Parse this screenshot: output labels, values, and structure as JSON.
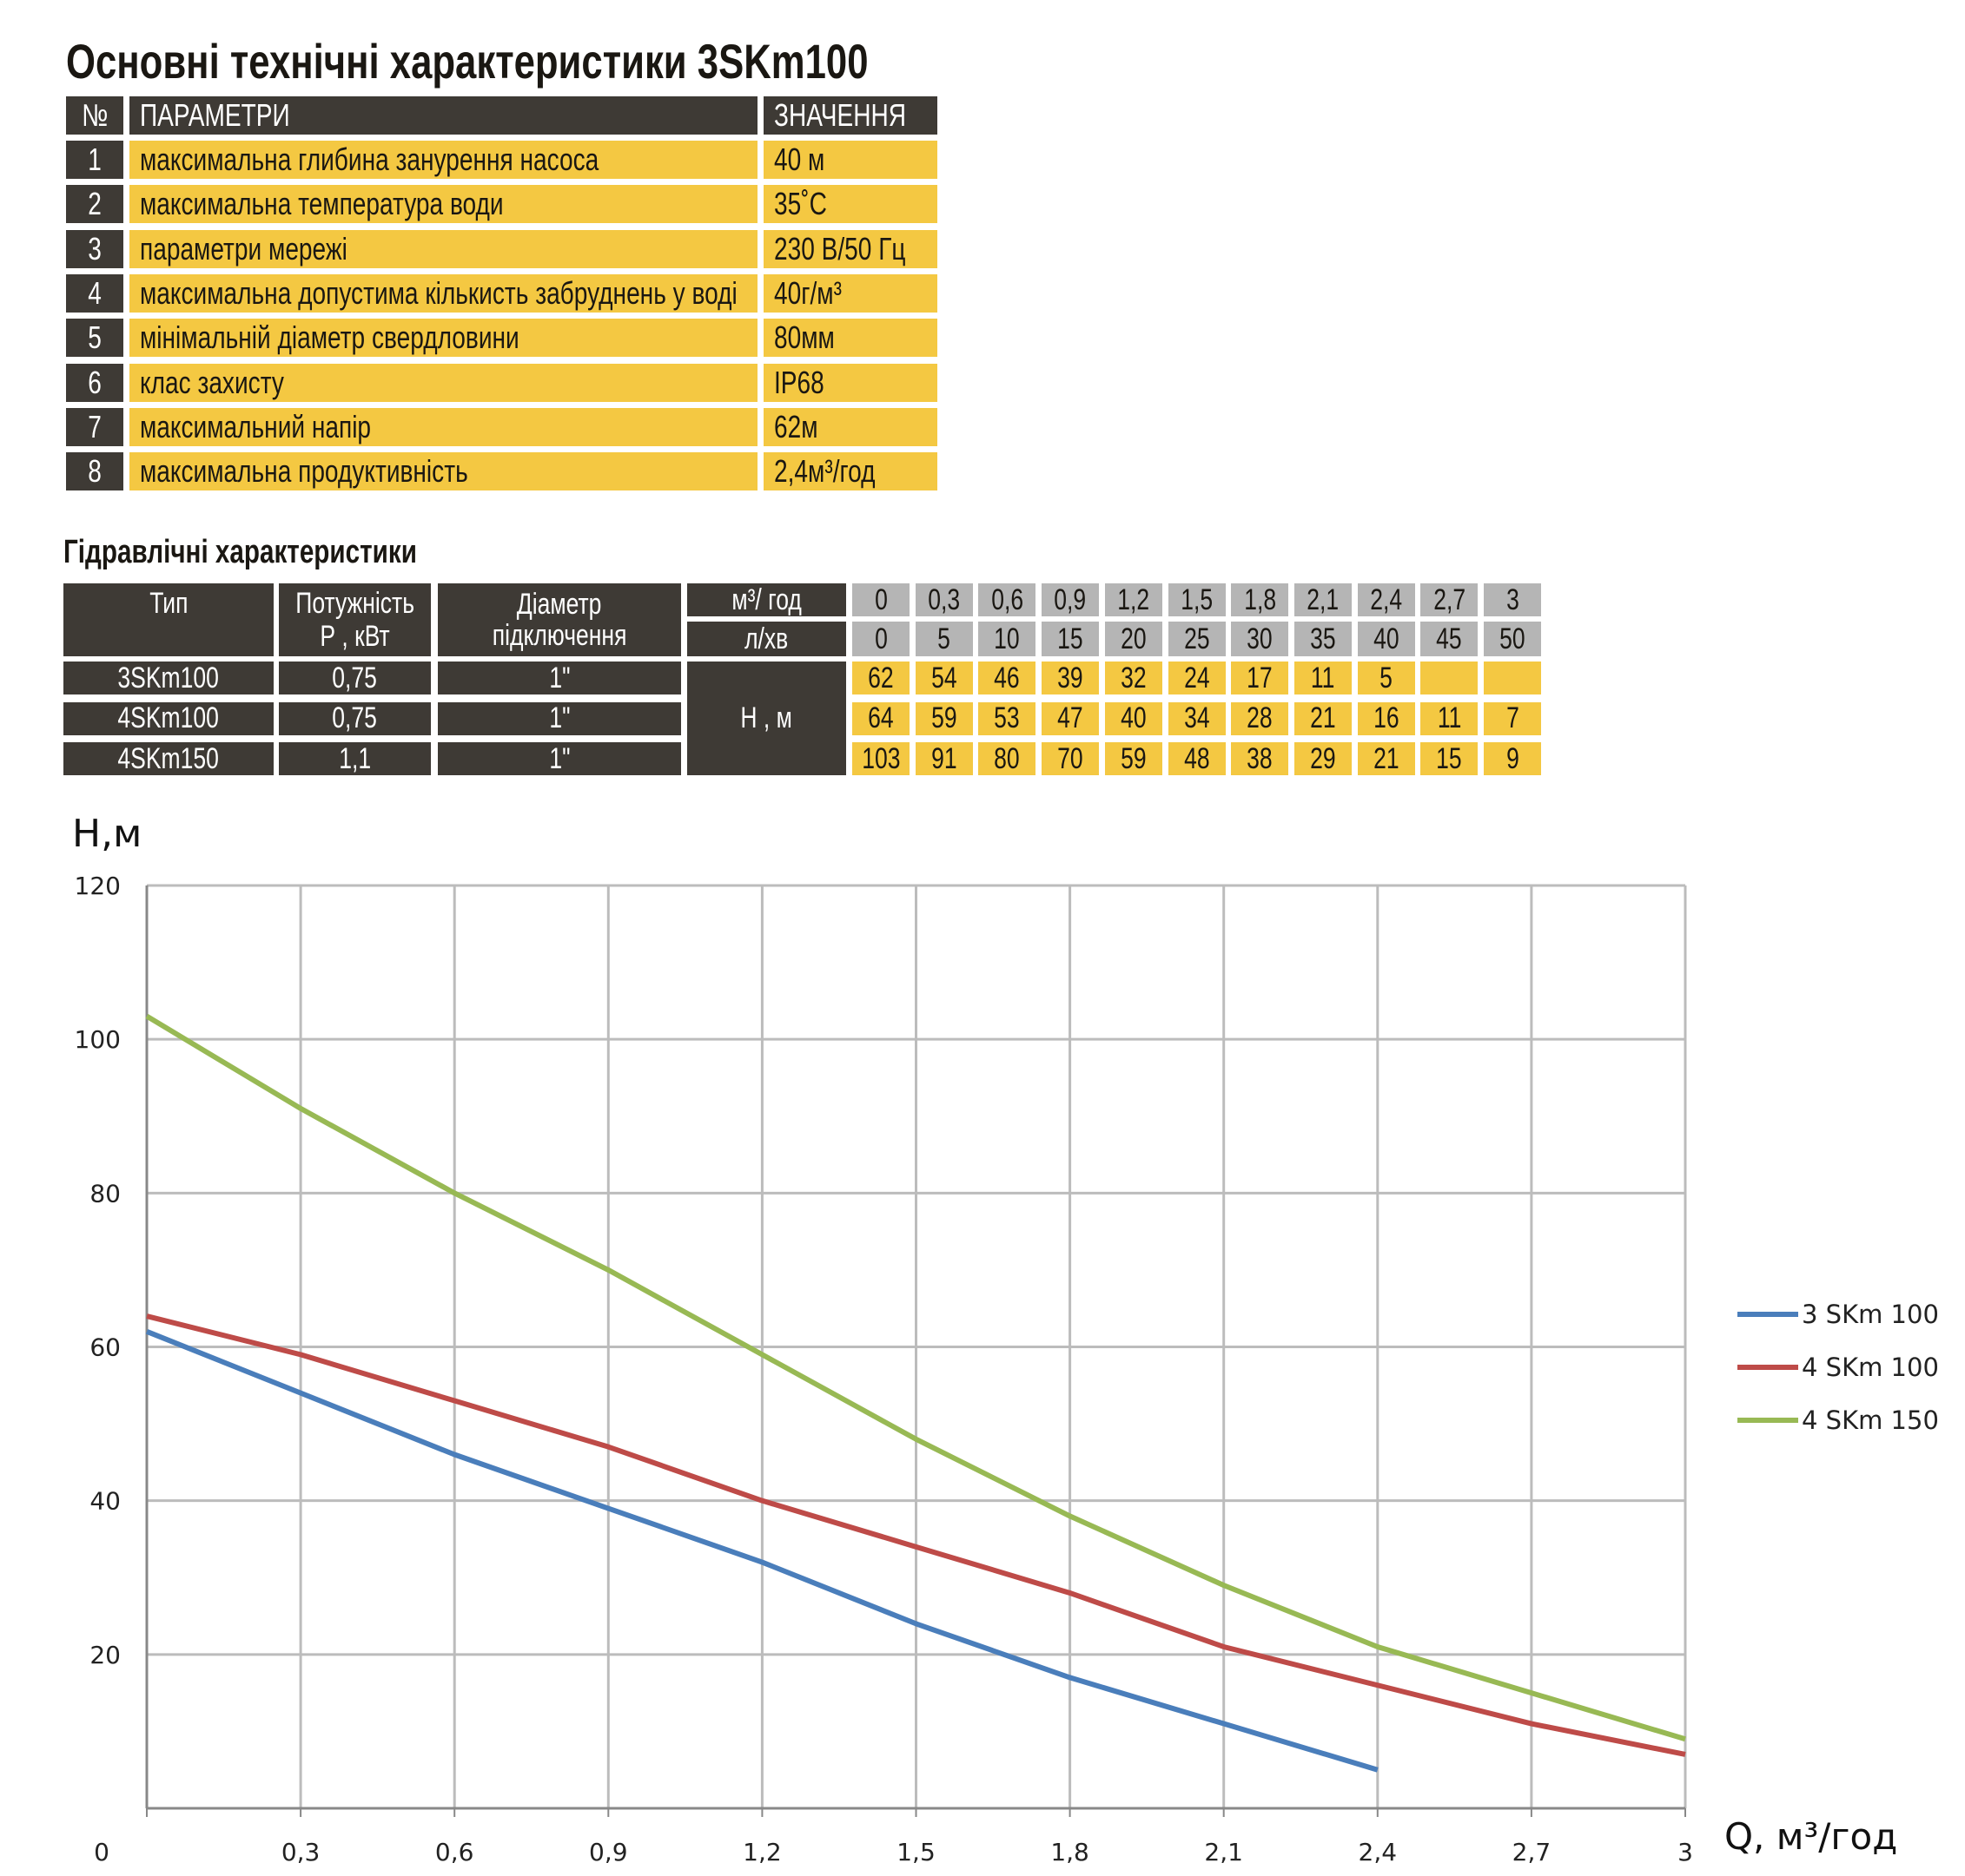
{
  "title": "Основні технічні характеристики 3SKm100",
  "specs": {
    "headers": [
      "№",
      "ПАРАМЕТРИ",
      "ЗНАЧЕННЯ"
    ],
    "rows": [
      {
        "n": "1",
        "param": "максимальна глибина занурення насоса",
        "value": "40 м"
      },
      {
        "n": "2",
        "param": "максимальна температура води",
        "value": "35˚С"
      },
      {
        "n": "3",
        "param": "параметри мережі",
        "value": "230 В/50 Гц"
      },
      {
        "n": "4",
        "param": "максимальна допустима кількисть забруднень у воді",
        "value": "40г/м³"
      },
      {
        "n": "5",
        "param": "мінімальній діаметр свердловини",
        "value": "80мм"
      },
      {
        "n": "6",
        "param": "клас захисту",
        "value": "IP68"
      },
      {
        "n": "7",
        "param": "максимальний напір",
        "value": "62м"
      },
      {
        "n": "8",
        "param": "максимальна продуктивність",
        "value": "2,4м³/год"
      }
    ]
  },
  "hydraulic": {
    "title": "Гідравлічні характеристики",
    "headers": {
      "type": "Тип",
      "power1": "Потужність",
      "power2": "Р , кВт",
      "diam1": "Діаметр",
      "diam2": "підключення",
      "unit_q": "м³/ год",
      "unit_l": "л/хв",
      "unit_h": "Н , м"
    },
    "q": [
      "0",
      "0,3",
      "0,6",
      "0,9",
      "1,2",
      "1,5",
      "1,8",
      "2,1",
      "2,4",
      "2,7",
      "3"
    ],
    "l": [
      "0",
      "5",
      "10",
      "15",
      "20",
      "25",
      "30",
      "35",
      "40",
      "45",
      "50"
    ],
    "rows": [
      {
        "type": "3SKm100",
        "power": "0,75",
        "diam": "1\"",
        "h": [
          "62",
          "54",
          "46",
          "39",
          "32",
          "24",
          "17",
          "11",
          "5",
          "",
          ""
        ]
      },
      {
        "type": "4SKm100",
        "power": "0,75",
        "diam": "1\"",
        "h": [
          "64",
          "59",
          "53",
          "47",
          "40",
          "34",
          "28",
          "21",
          "16",
          "11",
          "7"
        ]
      },
      {
        "type": "4SKm150",
        "power": "1,1",
        "diam": "1\"",
        "h": [
          "103",
          "91",
          "80",
          "70",
          "59",
          "48",
          "38",
          "29",
          "21",
          "15",
          "9"
        ]
      }
    ]
  },
  "colors": {
    "dark": "#3e3a35",
    "yellow": "#f4c842",
    "gray": "#b5b5b5"
  },
  "chart_data": {
    "type": "line",
    "ylabel": "Н,м",
    "xlabel": "Q,  м³/год",
    "x": [
      0,
      0.3,
      0.6,
      0.9,
      1.2,
      1.5,
      1.8,
      2.1,
      2.4,
      2.7,
      3
    ],
    "xticks": [
      "0",
      "0,3",
      "0,6",
      "0,9",
      "1,2",
      "1,5",
      "1,8",
      "2,1",
      "2,4",
      "2,7",
      "3"
    ],
    "yticks": [
      "20",
      "40",
      "60",
      "80",
      "100",
      "120"
    ],
    "xlim": [
      0,
      3
    ],
    "ylim": [
      0,
      120
    ],
    "grid": true,
    "legend": "right",
    "series": [
      {
        "name": "3 SKm 100",
        "color": "#4a7ebb",
        "values": [
          62,
          54,
          46,
          39,
          32,
          24,
          17,
          11,
          5,
          null,
          null
        ]
      },
      {
        "name": "4 SKm 100",
        "color": "#be4b48",
        "values": [
          64,
          59,
          53,
          47,
          40,
          34,
          28,
          21,
          16,
          11,
          7
        ]
      },
      {
        "name": "4 SKm 150",
        "color": "#98b954",
        "values": [
          103,
          91,
          80,
          70,
          59,
          48,
          38,
          29,
          21,
          15,
          9
        ]
      }
    ]
  }
}
